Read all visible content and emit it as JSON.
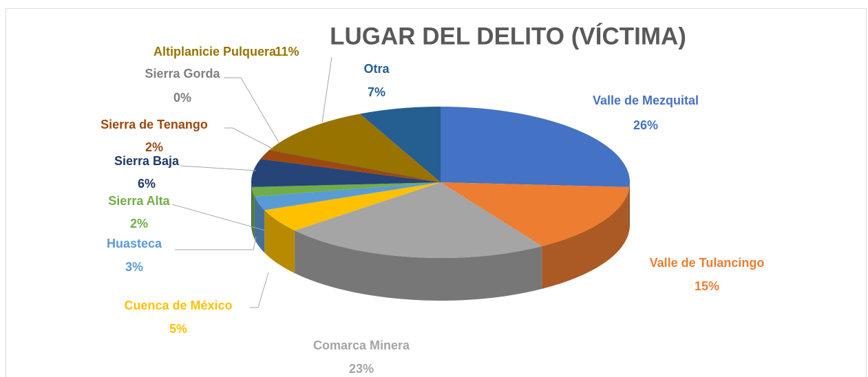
{
  "chart_data": {
    "type": "pie3d",
    "title": "LUGAR DEL DELITO (VÍCTIMA)",
    "categories": [
      "Valle de Mezquital",
      "Valle de Tulancingo",
      "Comarca Minera",
      "Cuenca de México",
      "Huasteca",
      "Sierra Alta",
      "Sierra Baja",
      "Sierra de Tenango",
      "Sierra Gorda",
      "Altiplanicie Pulquera",
      "Otra"
    ],
    "values": [
      26,
      15,
      23,
      5,
      3,
      2,
      6,
      2,
      0,
      11,
      7
    ],
    "value_labels": [
      "26%",
      "15%",
      "23%",
      "5%",
      "3%",
      "2%",
      "6%",
      "2%",
      "0%",
      "11%",
      "7%"
    ],
    "colors": [
      "#4472c4",
      "#ed7d31",
      "#a5a5a5",
      "#ffc000",
      "#5b9bd5",
      "#70ad47",
      "#264478",
      "#9e480e",
      "#636363",
      "#997300",
      "#255e91"
    ]
  }
}
